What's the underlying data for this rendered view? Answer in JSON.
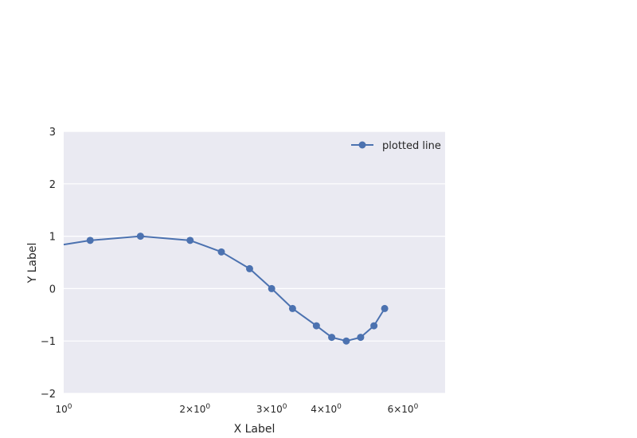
{
  "chart_data": {
    "type": "line",
    "title": "",
    "xlabel": "X Label",
    "ylabel": "Y Label",
    "xscale": "log",
    "xlim": [
      1.0,
      7.5
    ],
    "ylim": [
      -2,
      3
    ],
    "yticks": [
      -2,
      -1,
      0,
      1,
      2,
      3
    ],
    "yticklabels": [
      "−2",
      "−1",
      "0",
      "1",
      "2",
      "3"
    ],
    "xticks": [
      {
        "value": 1,
        "base": "10",
        "exp": "0"
      },
      {
        "value": 2,
        "base": "2×10",
        "exp": "0"
      },
      {
        "value": 3,
        "base": "3×10",
        "exp": "0"
      },
      {
        "value": 4,
        "base": "4×10",
        "exp": "0"
      },
      {
        "value": 6,
        "base": "6×10",
        "exp": "0"
      }
    ],
    "grid": true,
    "legend": "top-right",
    "series": [
      {
        "name": "plotted line",
        "color": "#4c72b0",
        "line_start": {
          "x": 1.0,
          "y": 0.84
        },
        "x": [
          1.15,
          1.5,
          1.95,
          2.3,
          2.67,
          3.0,
          3.35,
          3.8,
          4.12,
          4.45,
          4.8,
          5.15,
          5.45
        ],
        "y": [
          0.92,
          1.0,
          0.92,
          0.7,
          0.38,
          0.0,
          -0.38,
          -0.71,
          -0.93,
          -1.0,
          -0.93,
          -0.71,
          -0.38
        ]
      }
    ]
  }
}
